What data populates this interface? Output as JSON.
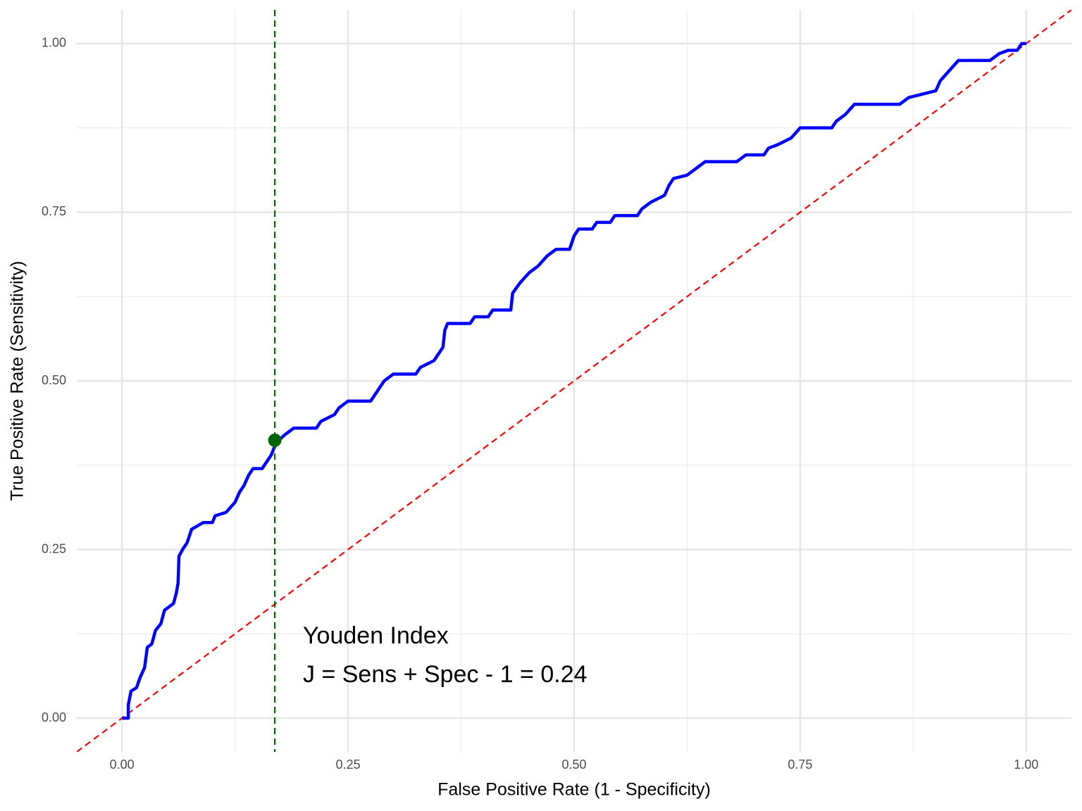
{
  "chart_data": {
    "type": "line",
    "x_label": "False Positive Rate (1 - Specificity)",
    "y_label": "True Positive Rate (Sensitivity)",
    "xlim": [
      -0.05,
      1.05
    ],
    "ylim": [
      -0.05,
      1.05
    ],
    "xticks": [
      {
        "value": 0,
        "label": "0.00"
      },
      {
        "value": 0.25,
        "label": "0.25"
      },
      {
        "value": 0.5,
        "label": "0.50"
      },
      {
        "value": 0.75,
        "label": "0.75"
      },
      {
        "value": 1,
        "label": "1.00"
      }
    ],
    "yticks": [
      {
        "value": 0,
        "label": "0.00"
      },
      {
        "value": 0.25,
        "label": "0.25"
      },
      {
        "value": 0.5,
        "label": "0.50"
      },
      {
        "value": 0.75,
        "label": "0.75"
      },
      {
        "value": 1,
        "label": "1.00"
      }
    ],
    "x_minor_ticks": [
      0.125,
      0.375,
      0.625,
      0.875
    ],
    "y_minor_ticks": [
      0.125,
      0.375,
      0.625,
      0.875
    ],
    "grid": true,
    "x": [
      0,
      0.007,
      0.007,
      0.01,
      0.016,
      0.02,
      0.025,
      0.028,
      0.033,
      0.037,
      0.043,
      0.047,
      0.057,
      0.06,
      0.062,
      0.063,
      0.067,
      0.072,
      0.077,
      0.09,
      0.1,
      0.103,
      0.115,
      0.125,
      0.13,
      0.135,
      0.14,
      0.145,
      0.155,
      0.16,
      0.165,
      0.168,
      0.172,
      0.18,
      0.19,
      0.215,
      0.22,
      0.235,
      0.24,
      0.25,
      0.275,
      0.285,
      0.29,
      0.3,
      0.325,
      0.33,
      0.345,
      0.355,
      0.357,
      0.36,
      0.385,
      0.39,
      0.405,
      0.41,
      0.43,
      0.432,
      0.44,
      0.45,
      0.46,
      0.47,
      0.48,
      0.495,
      0.5,
      0.505,
      0.52,
      0.525,
      0.54,
      0.545,
      0.57,
      0.575,
      0.585,
      0.6,
      0.605,
      0.61,
      0.625,
      0.635,
      0.645,
      0.68,
      0.69,
      0.71,
      0.715,
      0.725,
      0.74,
      0.75,
      0.785,
      0.79,
      0.8,
      0.81,
      0.86,
      0.87,
      0.9,
      0.905,
      0.915,
      0.925,
      0.96,
      0.97,
      0.98,
      0.99,
      0.995,
      1
    ],
    "series": [
      {
        "color": "#0000ff",
        "values": [
          0,
          0,
          0.02,
          0.04,
          0.045,
          0.06,
          0.075,
          0.105,
          0.11,
          0.13,
          0.14,
          0.16,
          0.17,
          0.185,
          0.2,
          0.24,
          0.25,
          0.26,
          0.28,
          0.29,
          0.29,
          0.3,
          0.305,
          0.32,
          0.335,
          0.345,
          0.36,
          0.37,
          0.37,
          0.38,
          0.39,
          0.4,
          0.41,
          0.42,
          0.43,
          0.43,
          0.44,
          0.45,
          0.46,
          0.47,
          0.47,
          0.49,
          0.5,
          0.51,
          0.51,
          0.52,
          0.53,
          0.55,
          0.575,
          0.585,
          0.585,
          0.595,
          0.595,
          0.605,
          0.605,
          0.63,
          0.645,
          0.66,
          0.67,
          0.685,
          0.695,
          0.695,
          0.715,
          0.725,
          0.725,
          0.735,
          0.735,
          0.745,
          0.745,
          0.755,
          0.765,
          0.775,
          0.79,
          0.8,
          0.805,
          0.815,
          0.825,
          0.825,
          0.835,
          0.835,
          0.845,
          0.85,
          0.86,
          0.875,
          0.875,
          0.885,
          0.895,
          0.91,
          0.91,
          0.92,
          0.93,
          0.945,
          0.96,
          0.975,
          0.975,
          0.985,
          0.99,
          0.99,
          1,
          1
        ]
      }
    ],
    "reference_line": {
      "slope": 1,
      "intercept": 0,
      "color": "#ff0000"
    },
    "vline": {
      "x": 0.169,
      "color": "#006400"
    },
    "point": {
      "x": 0.169,
      "y": 0.412,
      "color": "#006400"
    },
    "annotations": [
      "Youden Index",
      "J = Sens + Spec - 1 = 0.24"
    ]
  }
}
